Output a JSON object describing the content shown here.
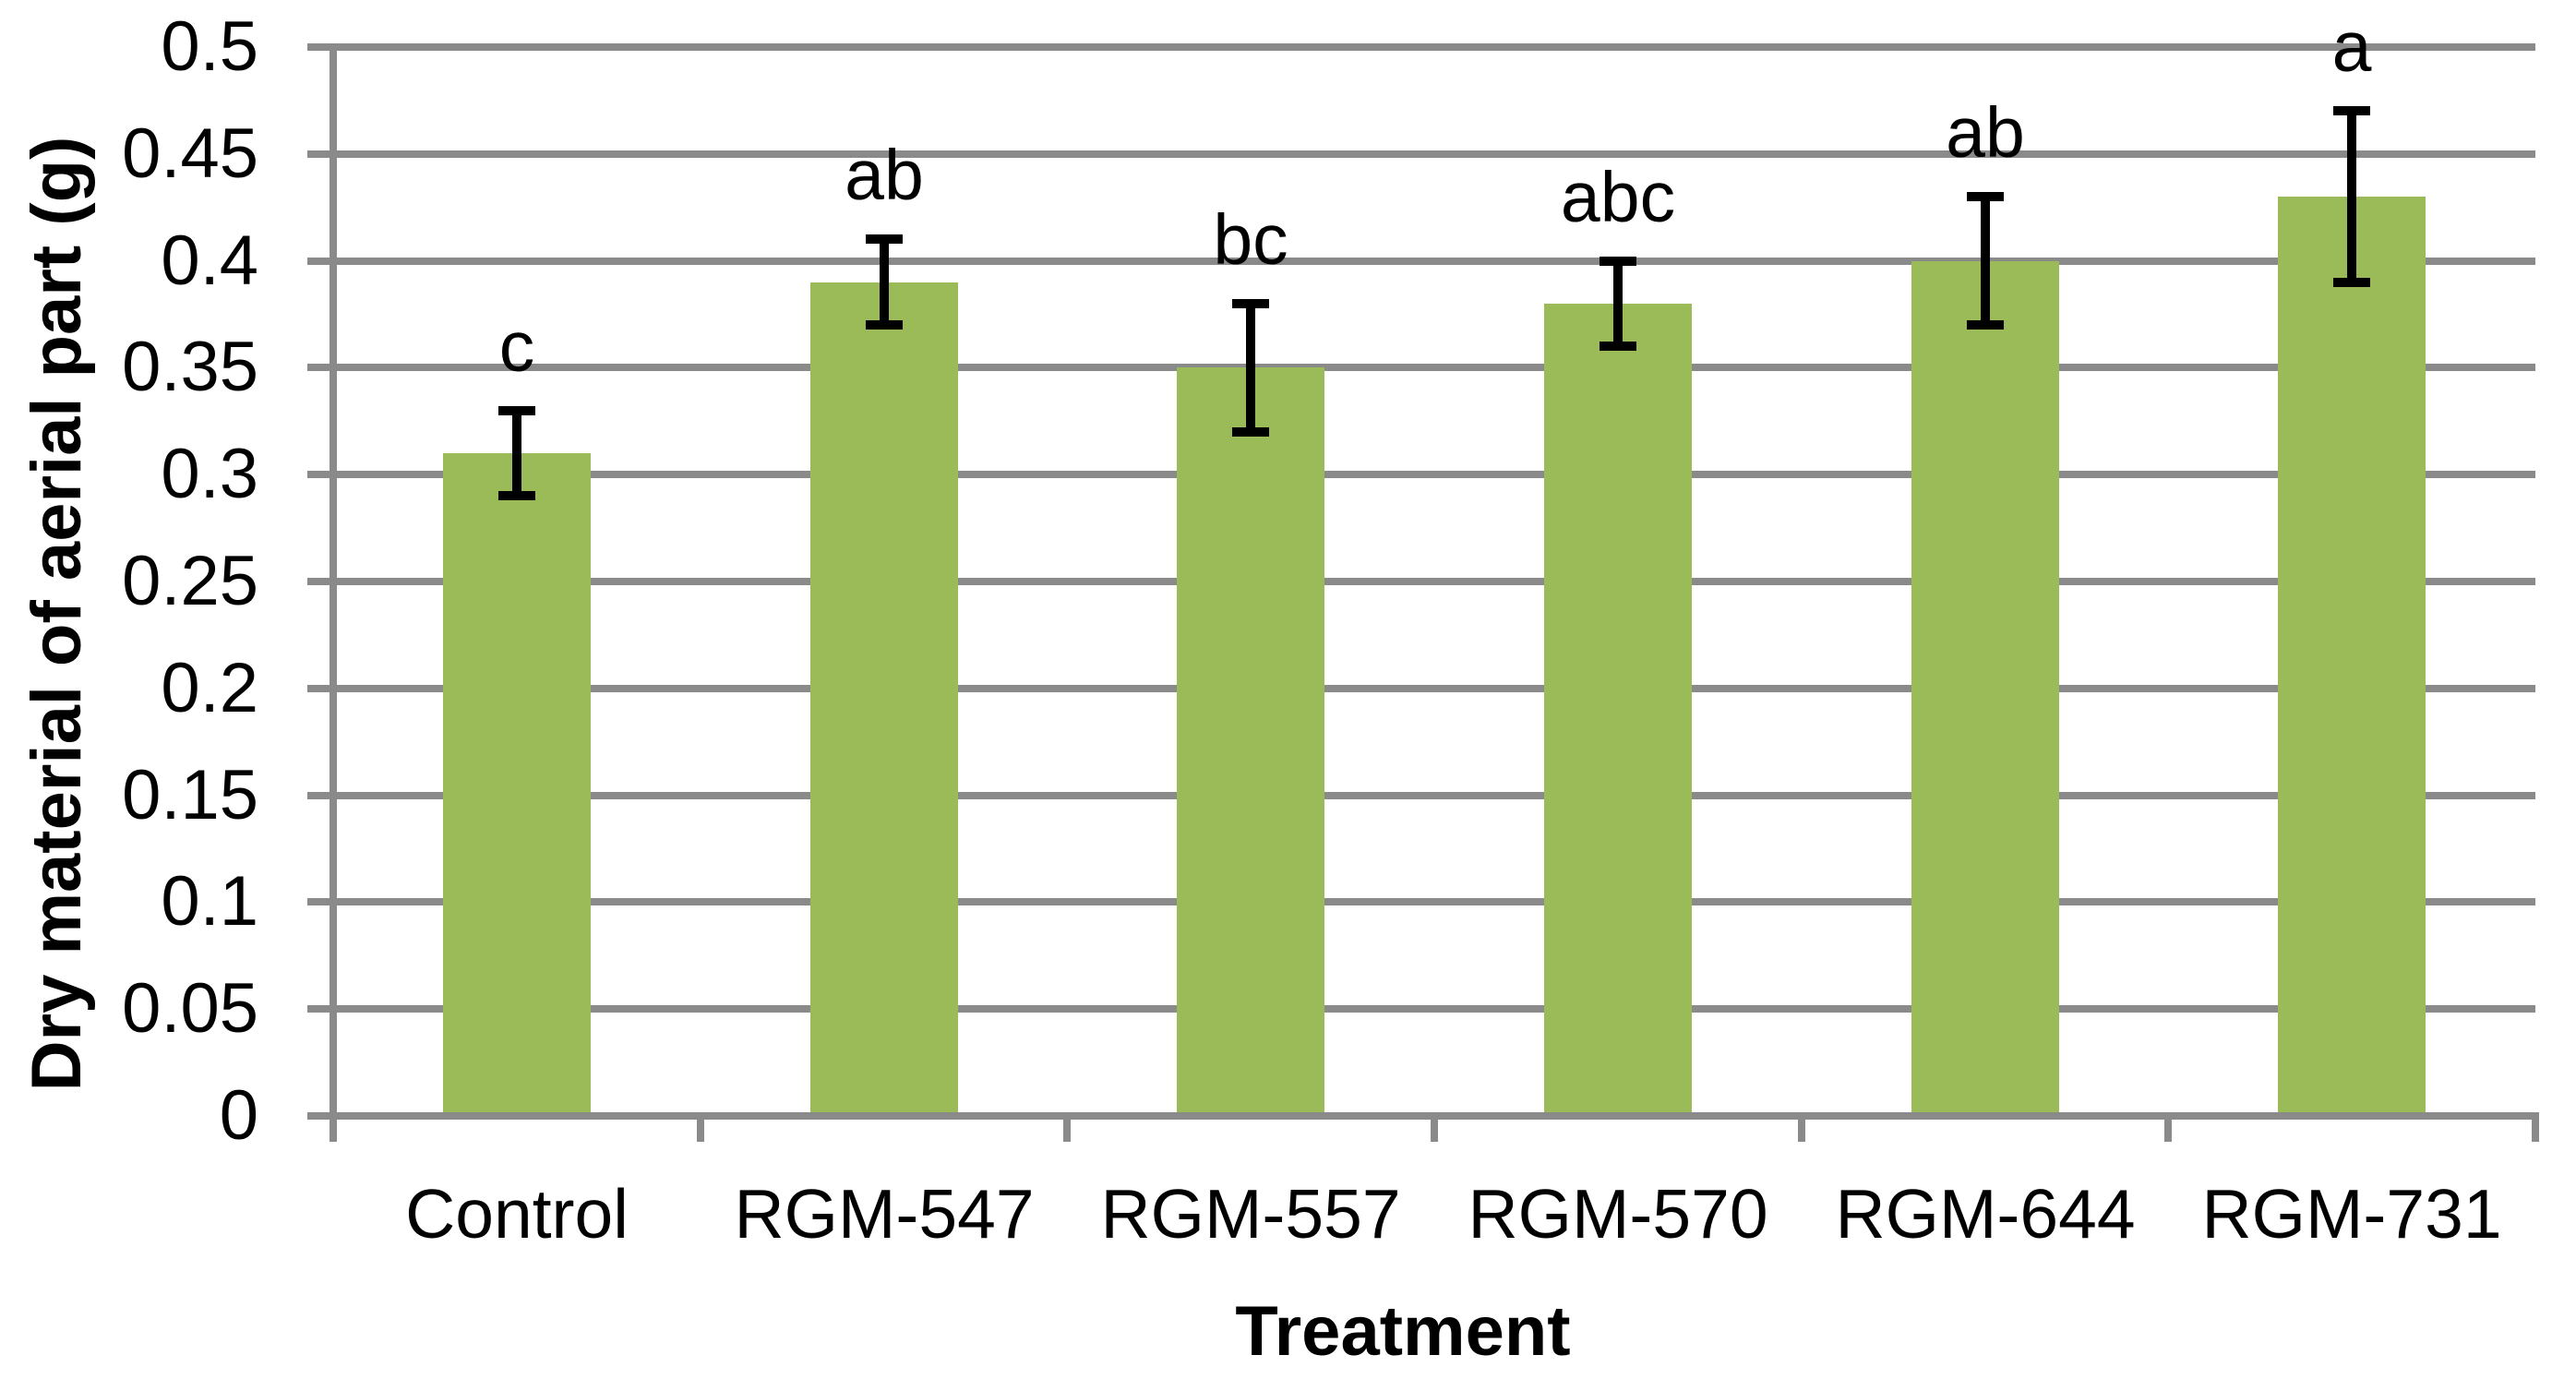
{
  "chart_data": {
    "type": "bar",
    "title": "",
    "xlabel": "Treatment",
    "ylabel": "Dry material of aerial part (g)",
    "categories": [
      "Control",
      "RGM-547",
      "RGM-557",
      "RGM-570",
      "RGM-644",
      "RGM-731"
    ],
    "values": [
      0.31,
      0.39,
      0.35,
      0.38,
      0.4,
      0.43
    ],
    "error_bars": [
      0.02,
      0.02,
      0.03,
      0.02,
      0.03,
      0.04
    ],
    "error_bar_low": [
      0.29,
      0.37,
      0.32,
      0.36,
      0.37,
      0.39
    ],
    "error_bar_high": [
      0.33,
      0.41,
      0.38,
      0.4,
      0.43,
      0.47
    ],
    "significance_letters": [
      "c",
      "ab",
      "bc",
      "abc",
      "ab",
      "a"
    ],
    "ylim": [
      0,
      0.5
    ],
    "ytick_step": 0.05,
    "ytick_labels": [
      "0",
      "0.05",
      "0.1",
      "0.15",
      "0.2",
      "0.25",
      "0.3",
      "0.35",
      "0.4",
      "0.45",
      "0.5"
    ],
    "grid": true,
    "legend": "none",
    "bar_color": "#9BBA58",
    "gridline_color": "#8A8A8A",
    "error_bar_color": "#000000",
    "text_color": "#000000",
    "background_color": "#FFFFFF"
  }
}
